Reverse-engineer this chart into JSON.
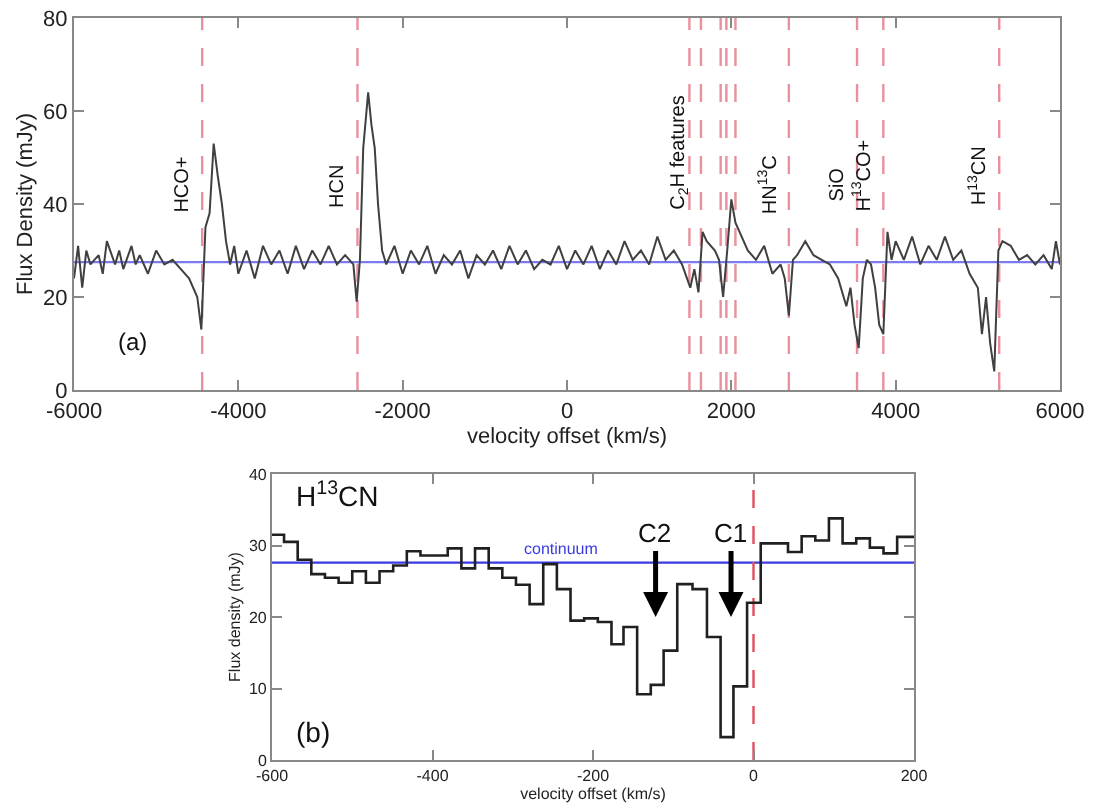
{
  "chart_data": [
    {
      "type": "line",
      "xlabel": "velocity offset (km/s)",
      "ylabel": "Flux Density (mJy)",
      "x": [
        -6000,
        -5950,
        -5900,
        -5850,
        -5800,
        -5700,
        -5650,
        -5600,
        -5500,
        -5450,
        -5400,
        -5300,
        -5250,
        -5200,
        -5100,
        -5000,
        -4900,
        -4800,
        -4700,
        -4600,
        -4500,
        -4450,
        -4400,
        -4350,
        -4300,
        -4250,
        -4200,
        -4150,
        -4100,
        -4050,
        -4000,
        -3900,
        -3800,
        -3700,
        -3600,
        -3500,
        -3400,
        -3300,
        -3200,
        -3100,
        -3000,
        -2900,
        -2800,
        -2700,
        -2600,
        -2560,
        -2520,
        -2480,
        -2420,
        -2380,
        -2340,
        -2300,
        -2250,
        -2200,
        -2100,
        -2000,
        -1900,
        -1800,
        -1700,
        -1600,
        -1500,
        -1400,
        -1300,
        -1200,
        -1100,
        -1000,
        -900,
        -800,
        -700,
        -600,
        -500,
        -400,
        -300,
        -200,
        -100,
        0,
        100,
        200,
        300,
        400,
        500,
        600,
        700,
        800,
        900,
        1000,
        1100,
        1200,
        1300,
        1400,
        1500,
        1550,
        1600,
        1650,
        1700,
        1800,
        1850,
        1900,
        1950,
        2000,
        2050,
        2100,
        2200,
        2300,
        2400,
        2500,
        2600,
        2650,
        2700,
        2750,
        2800,
        2900,
        3000,
        3100,
        3200,
        3300,
        3400,
        3450,
        3500,
        3550,
        3600,
        3650,
        3700,
        3750,
        3800,
        3850,
        3900,
        3950,
        4000,
        4100,
        4200,
        4300,
        4400,
        4500,
        4600,
        4700,
        4800,
        4900,
        5000,
        5050,
        5100,
        5150,
        5200,
        5250,
        5300,
        5400,
        5500,
        5600,
        5700,
        5800,
        5900,
        5950,
        6000
      ],
      "series": [
        {
          "color": "#404040",
          "values": [
            24,
            31,
            22,
            30,
            27,
            29,
            25,
            32,
            27,
            30,
            26,
            31,
            27,
            29,
            25,
            30,
            27,
            28,
            26,
            24,
            20,
            13,
            35,
            38,
            53,
            46,
            40,
            32,
            27,
            31,
            25,
            30,
            24,
            31,
            27,
            30,
            25,
            31,
            26,
            30,
            27,
            31,
            27,
            29,
            27,
            19,
            28,
            52,
            64,
            57,
            52,
            40,
            30,
            27,
            31,
            25,
            30,
            27,
            31,
            25,
            29,
            27,
            30,
            24,
            29,
            27,
            30,
            26,
            31,
            27,
            30,
            26,
            28,
            27,
            31,
            26,
            30,
            27,
            31,
            26,
            30,
            27,
            32,
            28,
            30,
            27,
            33,
            28,
            30,
            27,
            22,
            26,
            21,
            34,
            32,
            30,
            28,
            20,
            30,
            41,
            36,
            34,
            30,
            28,
            31,
            25,
            27,
            24,
            16,
            28,
            29,
            32,
            29,
            28,
            27,
            24,
            18,
            22,
            14,
            9,
            24,
            28,
            27,
            22,
            14,
            12,
            34,
            28,
            32,
            28,
            33,
            27,
            31,
            28,
            33,
            28,
            30,
            25,
            22,
            12,
            20,
            10,
            4,
            30,
            32,
            31,
            28,
            29,
            27,
            29,
            26,
            32,
            27
          ]
        }
      ],
      "xlim": [
        -6000,
        6000
      ],
      "xticks": [
        -6000,
        -4000,
        -2000,
        0,
        2000,
        4000,
        6000
      ],
      "ylim": [
        0,
        80
      ],
      "yticks": [
        0,
        20,
        40,
        60,
        80
      ],
      "ref_lines": [
        {
          "axis": "y",
          "value": 27.5,
          "color": "#7b7bef",
          "line_style": "solid"
        },
        {
          "axis": "x",
          "value": -4440,
          "color": "#e8909c",
          "line_style": "dashed"
        },
        {
          "axis": "x",
          "value": -2550,
          "color": "#e8909c",
          "line_style": "dashed"
        },
        {
          "axis": "x",
          "value": 1490,
          "color": "#e8909c",
          "line_style": "dashed"
        },
        {
          "axis": "x",
          "value": 1630,
          "color": "#e8909c",
          "line_style": "dashed"
        },
        {
          "axis": "x",
          "value": 1870,
          "color": "#e8909c",
          "line_style": "dashed"
        },
        {
          "axis": "x",
          "value": 1940,
          "color": "#e8909c",
          "line_style": "dashed"
        },
        {
          "axis": "x",
          "value": 2050,
          "color": "#e8909c",
          "line_style": "dashed"
        },
        {
          "axis": "x",
          "value": 2700,
          "color": "#e8909c",
          "line_style": "dashed"
        },
        {
          "axis": "x",
          "value": 3530,
          "color": "#e8909c",
          "line_style": "dashed"
        },
        {
          "axis": "x",
          "value": 3850,
          "color": "#e8909c",
          "line_style": "dashed"
        },
        {
          "axis": "x",
          "value": 5260,
          "color": "#e8909c",
          "line_style": "dashed"
        }
      ],
      "annotations": [
        "(a)",
        {
          "text": "HCO+",
          "x": -4440,
          "y": 44
        },
        {
          "text": "HCN",
          "x": -2550,
          "y": 44
        },
        {
          "text": "C$_{2}$H features",
          "x": 1630,
          "y": 51
        },
        {
          "text": "HN$^{13}$C",
          "x": 2700,
          "y": 44
        },
        {
          "text": "SiO",
          "x": 3530,
          "y": 44
        },
        {
          "text": "H$^{13}$CO+",
          "x": 3850,
          "y": 46
        },
        {
          "text": "H$^{13}$CN",
          "x": 5260,
          "y": 46
        }
      ]
    },
    {
      "type": "step",
      "xlabel": "velocity offset (km/s)",
      "ylabel": "Flux density (mJy)",
      "x": [
        -600,
        -585,
        -568,
        -551,
        -534,
        -517,
        -500,
        -483,
        -466,
        -449,
        -432,
        -415,
        -398,
        -381,
        -364,
        -347,
        -330,
        -313,
        -296,
        -279,
        -262,
        -245,
        -228,
        -211,
        -194,
        -177,
        -162,
        -145,
        -128,
        -112,
        -95,
        -76,
        -58,
        -41,
        -25,
        -8,
        9,
        26,
        43,
        60,
        77,
        94,
        111,
        128,
        145,
        162,
        179,
        200
      ],
      "series": [
        {
          "color": "#202020",
          "values": [
            31.5,
            30.5,
            28,
            26,
            25.5,
            24.8,
            26.4,
            24.8,
            26.4,
            27.2,
            29.2,
            28.6,
            28.6,
            29.6,
            26.8,
            29.6,
            26.8,
            25.5,
            24.5,
            21.8,
            27.4,
            23.9,
            19.5,
            19.8,
            19.3,
            16.2,
            18.6,
            9.2,
            10.5,
            15.3,
            24.6,
            23.9,
            17.2,
            3.2,
            10.3,
            22,
            30.3,
            30.3,
            29.1,
            31.3,
            30.7,
            33.8,
            30.3,
            31,
            29.7,
            28.9,
            31.2,
            31.2
          ]
        }
      ],
      "xlim": [
        -600,
        200
      ],
      "xticks": [
        -600,
        -400,
        -200,
        0,
        200
      ],
      "ylim": [
        0,
        40
      ],
      "yticks": [
        0,
        10,
        20,
        30,
        40
      ],
      "ref_lines": [
        {
          "axis": "y",
          "value": 27.6,
          "label": "continuum",
          "color": "#3a3ae0",
          "line_style": "solid"
        },
        {
          "axis": "x",
          "value": 0,
          "color": "#e05060",
          "line_style": "dashed"
        }
      ],
      "annotations": [
        "H$^{13}$CN",
        "(b)",
        "C2",
        "C1"
      ]
    }
  ]
}
